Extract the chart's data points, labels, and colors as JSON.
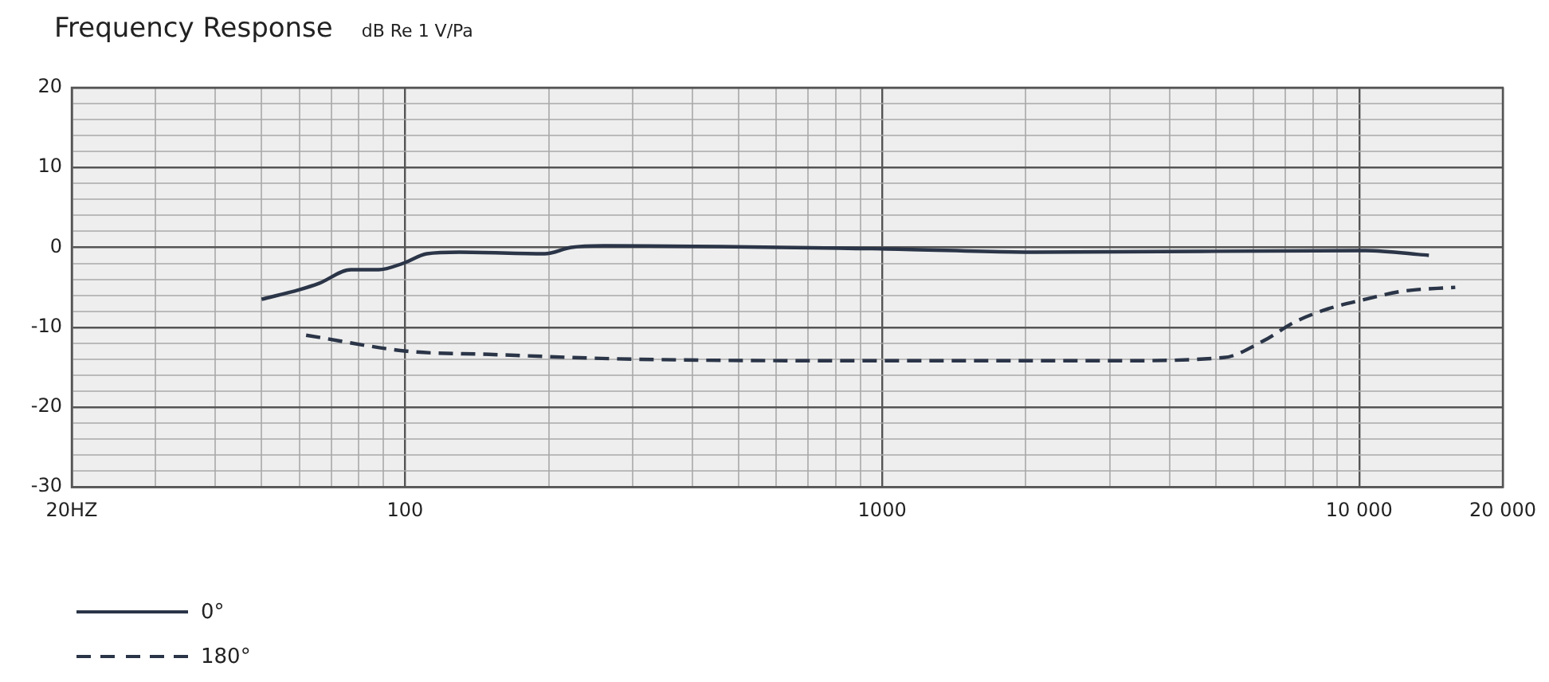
{
  "chart_data": {
    "type": "line",
    "title": "Frequency Response",
    "subtitle": "dB Re 1 V/Pa",
    "log": "x",
    "grid": true,
    "legend": "bottom left",
    "marker": "none",
    "xlim": [
      20,
      20000
    ],
    "ylim": [
      -30,
      20
    ],
    "xticks": [
      {
        "value": 20,
        "label": "20HZ"
      },
      {
        "value": 30,
        "label": null
      },
      {
        "value": 40,
        "label": null
      },
      {
        "value": 50,
        "label": null
      },
      {
        "value": 60,
        "label": null
      },
      {
        "value": 70,
        "label": null
      },
      {
        "value": 80,
        "label": null
      },
      {
        "value": 90,
        "label": null
      },
      100,
      {
        "value": 200,
        "label": null
      },
      {
        "value": 300,
        "label": null
      },
      {
        "value": 400,
        "label": null
      },
      {
        "value": 500,
        "label": null
      },
      {
        "value": 600,
        "label": null
      },
      {
        "value": 700,
        "label": null
      },
      {
        "value": 800,
        "label": null
      },
      {
        "value": 900,
        "label": null
      },
      1000,
      {
        "value": 2000,
        "label": null
      },
      {
        "value": 3000,
        "label": null
      },
      {
        "value": 4000,
        "label": null
      },
      {
        "value": 5000,
        "label": null
      },
      {
        "value": 6000,
        "label": null
      },
      {
        "value": 7000,
        "label": null
      },
      {
        "value": 8000,
        "label": null
      },
      {
        "value": 9000,
        "label": null
      },
      {
        "value": 10000,
        "label": "10 000"
      },
      {
        "value": 20000,
        "label": "20 000"
      }
    ],
    "yticks": [
      -30,
      {
        "value": -28,
        "label": null
      },
      {
        "value": -26,
        "label": null
      },
      {
        "value": -24,
        "label": null
      },
      {
        "value": -22,
        "label": null
      },
      -20,
      {
        "value": -18,
        "label": null
      },
      {
        "value": -16,
        "label": null
      },
      {
        "value": -14,
        "label": null
      },
      {
        "value": -12,
        "label": null
      },
      -10,
      {
        "value": -8,
        "label": null
      },
      {
        "value": -6,
        "label": null
      },
      {
        "value": -4,
        "label": null
      },
      {
        "value": -2,
        "label": null
      },
      0,
      {
        "value": 2,
        "label": null
      },
      {
        "value": 4,
        "label": null
      },
      {
        "value": 6,
        "label": null
      },
      {
        "value": 8,
        "label": null
      },
      10,
      {
        "value": 12,
        "label": null
      },
      {
        "value": 14,
        "label": null
      },
      {
        "value": 16,
        "label": null
      },
      {
        "value": 18,
        "label": null
      },
      20
    ],
    "series": [
      {
        "name": "0°",
        "color": "#2b3548",
        "line_style": "solid",
        "x": [
          50,
          60,
          66,
          77,
          88,
          99,
          111,
          130,
          196,
          223,
          260,
          1025,
          2100,
          10300,
          14000
        ],
        "values": [
          -6.5,
          -5.3,
          -4.5,
          -2.8,
          -2.8,
          -2,
          -0.8,
          -0.6,
          -0.8,
          0,
          0.2,
          -0.2,
          -0.6,
          -0.4,
          -1
        ]
      },
      {
        "name": "180°",
        "color": "#2b3548",
        "line_style": "dashed",
        "x": [
          62,
          101,
          150,
          300,
          1025,
          3000,
          5200,
          6300,
          7350,
          8600,
          10300,
          12300,
          15900
        ],
        "values": [
          -11,
          -13,
          -13.4,
          -14,
          -14.2,
          -14.2,
          -13.8,
          -11.7,
          -9.3,
          -7.7,
          -6.5,
          -5.5,
          -5
        ]
      }
    ]
  }
}
